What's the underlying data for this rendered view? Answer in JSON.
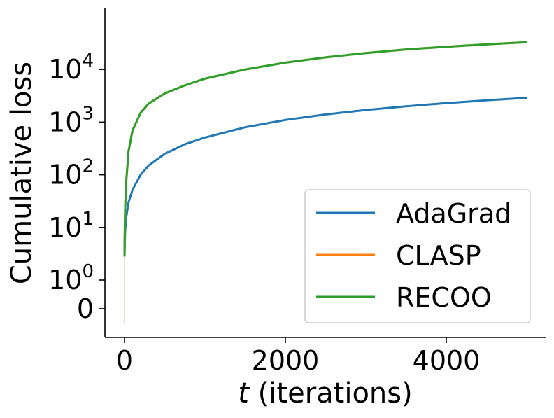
{
  "chart_data": {
    "type": "line",
    "title": "",
    "xlabel_var": "t",
    "xlabel_rest": " (iterations)",
    "ylabel": "Cumulative loss",
    "x_scale": "linear",
    "y_scale": "symlog",
    "xlim": [
      -120,
      5250
    ],
    "x_ticks": [
      0,
      2000,
      4000
    ],
    "y_ticks": [
      {
        "value": 0,
        "base": "0",
        "exp": ""
      },
      {
        "value": 1,
        "base": "10",
        "exp": "0"
      },
      {
        "value": 10,
        "base": "10",
        "exp": "1"
      },
      {
        "value": 100,
        "base": "10",
        "exp": "2"
      },
      {
        "value": 1000,
        "base": "10",
        "exp": "3"
      },
      {
        "value": 10000,
        "base": "10",
        "exp": "4"
      }
    ],
    "grid": false,
    "legend_position": "lower-right",
    "series": [
      {
        "name": "AdaGrad",
        "color": "#1f77b4",
        "x": [
          0,
          1,
          5,
          10,
          20,
          50,
          100,
          200,
          300,
          500,
          750,
          1000,
          1500,
          2000,
          2500,
          3000,
          3500,
          4000,
          4500,
          5000
        ],
        "y": [
          2.8,
          3.2,
          6.5,
          9.5,
          15,
          30,
          52,
          100,
          150,
          250,
          380,
          510,
          800,
          1100,
          1400,
          1700,
          2000,
          2300,
          2600,
          2900
        ]
      },
      {
        "name": "CLASP",
        "color": "#ff7f0e",
        "x": [
          0,
          1,
          5,
          10,
          20,
          50,
          100,
          200,
          300,
          500,
          750,
          1000,
          1500,
          2000,
          2500,
          3000,
          3500,
          4000,
          4500,
          5000
        ],
        "y": [
          2.8,
          5,
          13,
          28,
          70,
          280,
          700,
          1500,
          2250,
          3500,
          5000,
          6700,
          10000,
          13500,
          17000,
          20500,
          24000,
          27000,
          30000,
          33000
        ]
      },
      {
        "name": "RECOO",
        "color": "#2ca02c",
        "x": [
          0,
          1,
          5,
          10,
          20,
          50,
          100,
          200,
          300,
          500,
          750,
          1000,
          1500,
          2000,
          2500,
          3000,
          3500,
          4000,
          4500,
          5000
        ],
        "y": [
          2.8,
          5,
          13,
          28,
          70,
          280,
          700,
          1500,
          2250,
          3500,
          5000,
          6700,
          10000,
          13500,
          17000,
          20500,
          24000,
          27000,
          30000,
          33000
        ]
      }
    ]
  }
}
